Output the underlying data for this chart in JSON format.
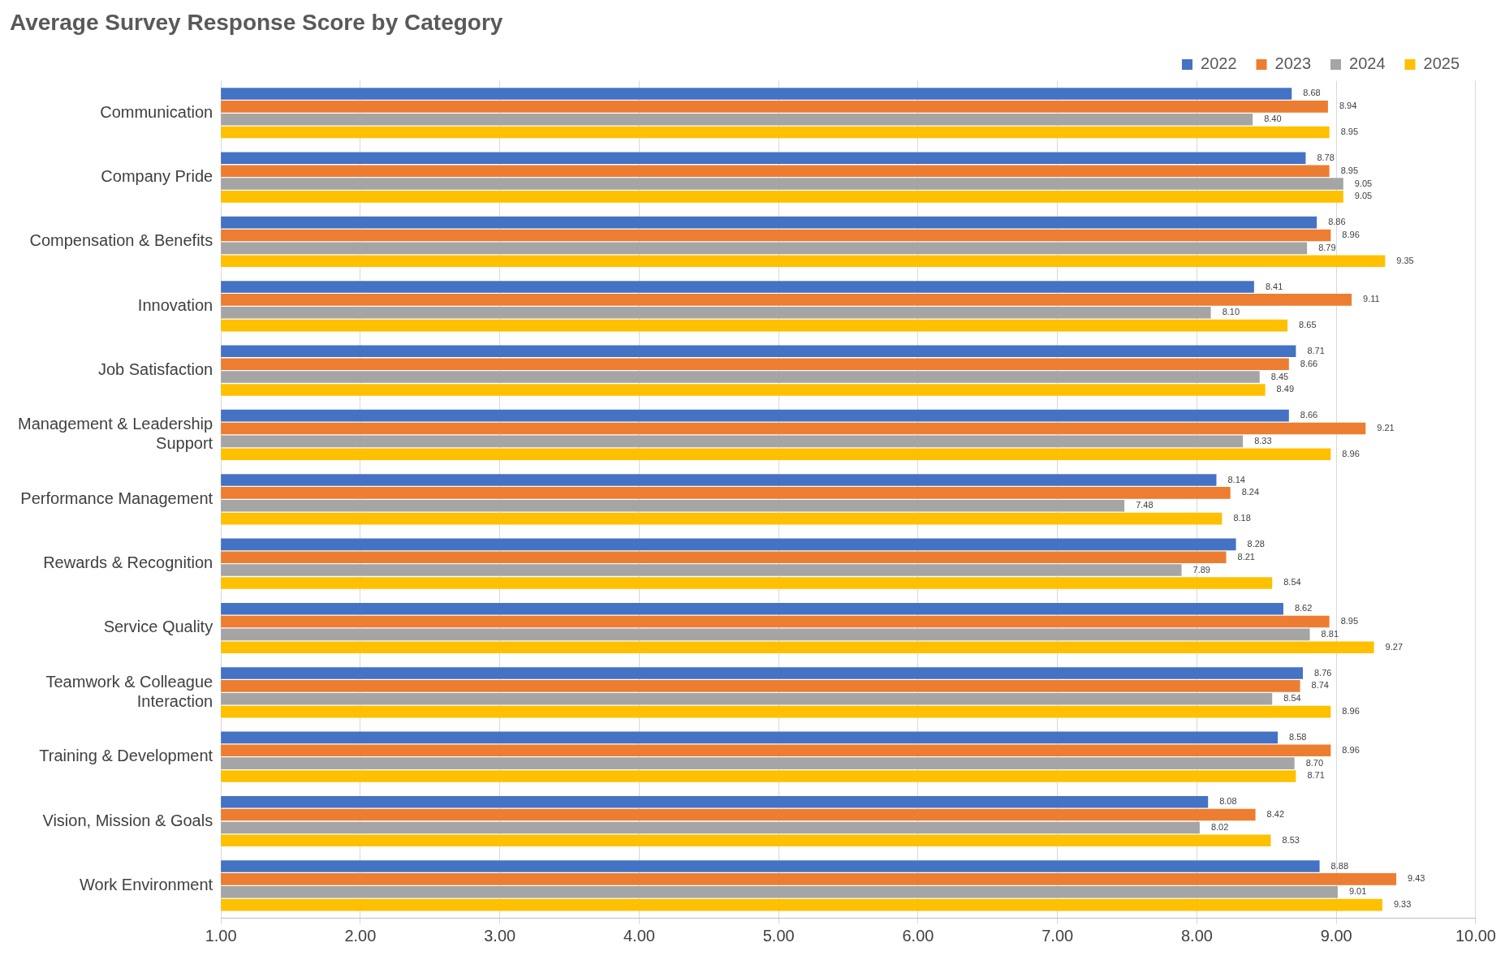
{
  "chart_data": {
    "type": "bar",
    "orientation": "horizontal",
    "title": "Average Survey Response Score by Category",
    "categories": [
      "Communication",
      "Company Pride",
      "Compensation & Benefits",
      "Innovation",
      "Job Satisfaction",
      "Management & Leadership Support",
      "Performance Management",
      "Rewards & Recognition",
      "Service Quality",
      "Teamwork & Colleague Interaction",
      "Training & Development",
      "Vision, Mission & Goals",
      "Work Environment"
    ],
    "series": [
      {
        "name": "2022",
        "color": "#4472c4",
        "values": [
          8.68,
          8.78,
          8.86,
          8.41,
          8.71,
          8.66,
          8.14,
          8.28,
          8.62,
          8.76,
          8.58,
          8.08,
          8.88
        ],
        "value_labels": [
          "8.68",
          "8.78",
          "8.86",
          "8.41",
          "8.71",
          "8.66",
          "8.14",
          "8.28",
          "8.62",
          "8.76",
          "8.58",
          "8.08",
          "8.88"
        ]
      },
      {
        "name": "2023",
        "color": "#ed7d31",
        "values": [
          8.94,
          8.95,
          8.96,
          9.11,
          8.66,
          9.21,
          8.24,
          8.21,
          8.95,
          8.74,
          8.96,
          8.42,
          9.43
        ],
        "value_labels": [
          "8.94",
          "8.95",
          "8.96",
          "9.11",
          "8.66",
          "9.21",
          "8.24",
          "8.21",
          "8.95",
          "8.74",
          "8.96",
          "8.42",
          "9.43"
        ]
      },
      {
        "name": "2024",
        "color": "#a5a5a5",
        "values": [
          8.4,
          9.05,
          8.79,
          8.1,
          8.45,
          8.33,
          7.48,
          7.89,
          8.81,
          8.54,
          8.7,
          8.02,
          9.01
        ],
        "value_labels": [
          "8.40",
          "9.05",
          "8.79",
          "8.10",
          "8.45",
          "8.33",
          "7.48",
          "7.89",
          "8.81",
          "8.54",
          "8.70",
          "8.02",
          "9.01"
        ]
      },
      {
        "name": "2025",
        "color": "#ffc000",
        "values": [
          8.95,
          9.05,
          9.35,
          8.65,
          8.49,
          8.96,
          8.18,
          8.54,
          9.27,
          8.96,
          8.71,
          8.53,
          9.33
        ],
        "value_labels": [
          "8.95",
          "9.05",
          "9.35",
          "8.65",
          "8.49",
          "8.96",
          "8.18",
          "8.54",
          "9.27",
          "8.96",
          "8.71",
          "8.53",
          "9.33"
        ]
      }
    ],
    "xlim": [
      1,
      10
    ],
    "xticks": [
      {
        "value": 1,
        "label": "1.00"
      },
      {
        "value": 2,
        "label": "2.00"
      },
      {
        "value": 3,
        "label": "3.00"
      },
      {
        "value": 4,
        "label": "4.00"
      },
      {
        "value": 5,
        "label": "5.00"
      },
      {
        "value": 6,
        "label": "6.00"
      },
      {
        "value": 7,
        "label": "7.00"
      },
      {
        "value": 8,
        "label": "8.00"
      },
      {
        "value": 9,
        "label": "9.00"
      },
      {
        "value": 10,
        "label": "10.00"
      }
    ],
    "grid": "x",
    "legend": "top right"
  }
}
